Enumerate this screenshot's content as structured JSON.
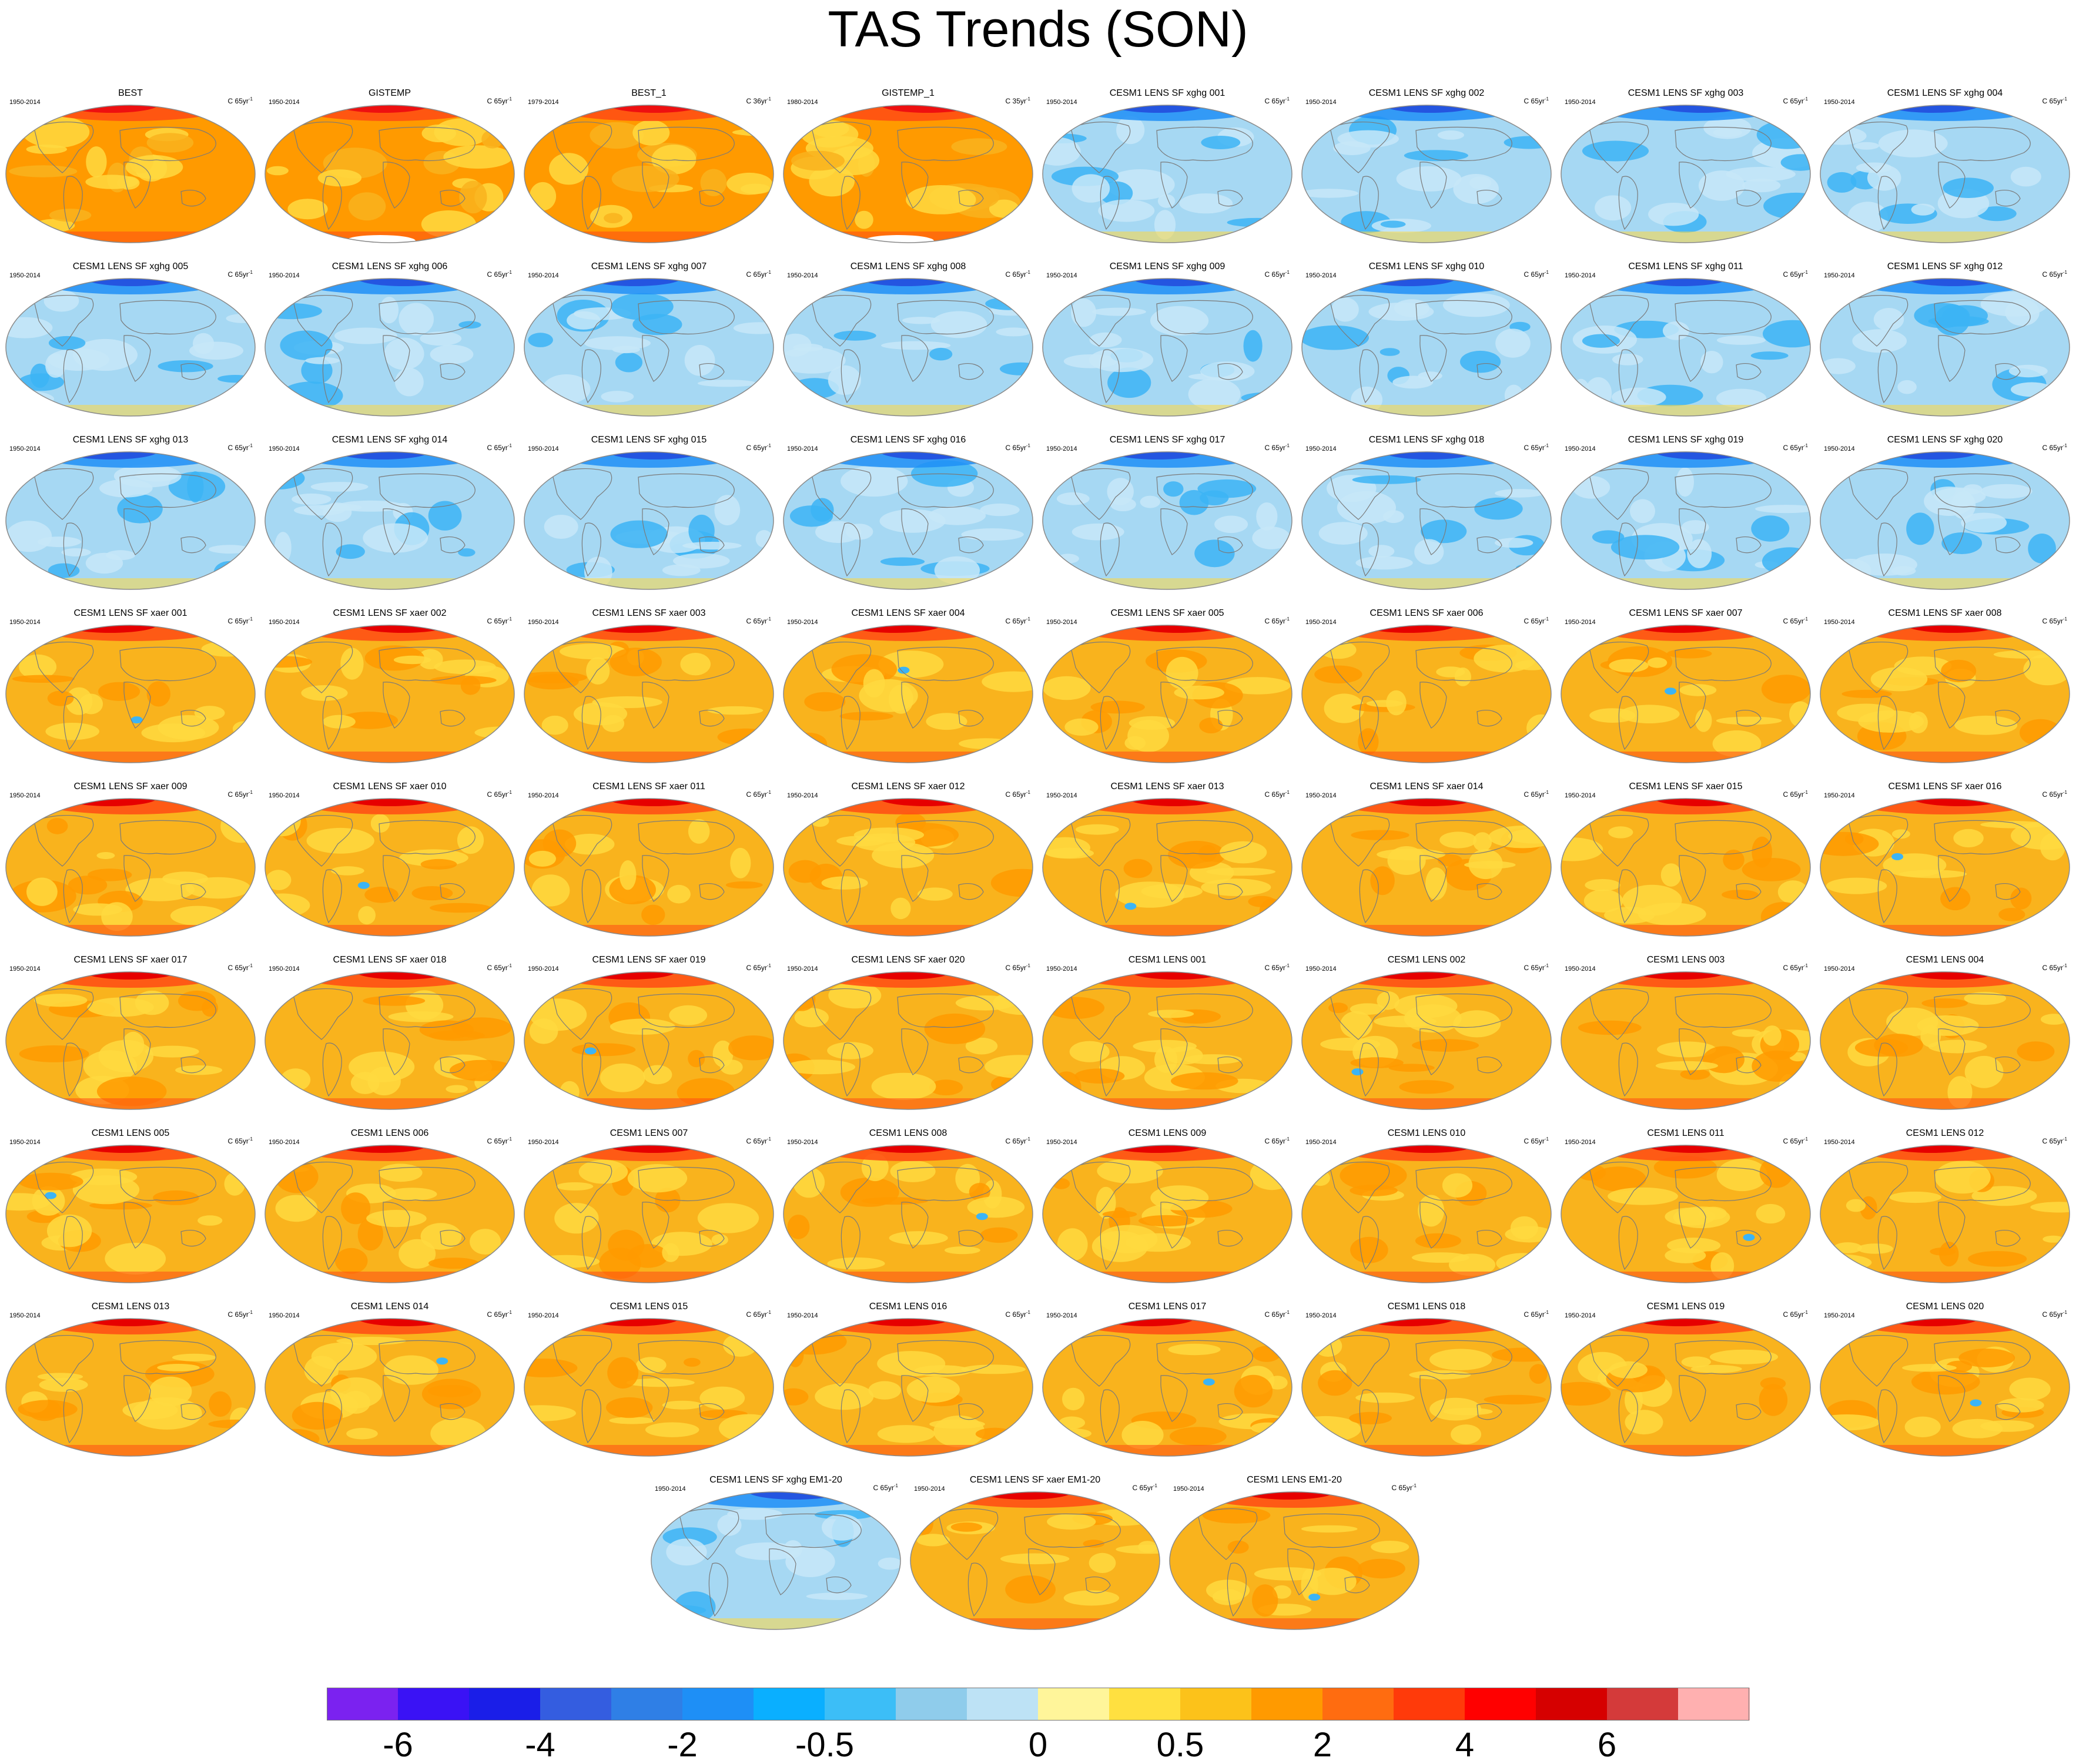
{
  "title": "TAS Trends (SON)",
  "colors": {
    "map_outline": "#8a8a8a",
    "land_outline": "#7a7a7a",
    "warm_base": "#f9b31d",
    "warm_light": "#ffd940",
    "warm_mid": "#ff9a00",
    "warm_hot": "#ff4a14",
    "warm_arctic": "#e60000",
    "cool_base": "#a6d8f3",
    "cool_mid": "#3cb4f5",
    "cool_deep": "#1e8ff6",
    "cool_arctic": "#2455e0"
  },
  "panels": [
    {
      "name": "BEST",
      "years": "1950-2014",
      "unit": "C 65yr",
      "style": "obs"
    },
    {
      "name": "GISTEMP",
      "years": "1950-2014",
      "unit": "C 65yr",
      "style": "obs"
    },
    {
      "name": "BEST_1",
      "years": "1979-2014",
      "unit": "C 36yr",
      "style": "obs"
    },
    {
      "name": "GISTEMP_1",
      "years": "1980-2014",
      "unit": "C 35yr",
      "style": "obs"
    },
    {
      "name": "CESM1 LENS SF xghg 001",
      "years": "1950-2014",
      "unit": "C 65yr",
      "style": "cool"
    },
    {
      "name": "CESM1 LENS SF xghg 002",
      "years": "1950-2014",
      "unit": "C 65yr",
      "style": "cool"
    },
    {
      "name": "CESM1 LENS SF xghg 003",
      "years": "1950-2014",
      "unit": "C 65yr",
      "style": "cool"
    },
    {
      "name": "CESM1 LENS SF xghg 004",
      "years": "1950-2014",
      "unit": "C 65yr",
      "style": "cool"
    },
    {
      "name": "CESM1 LENS SF xghg 005",
      "years": "1950-2014",
      "unit": "C 65yr",
      "style": "cool"
    },
    {
      "name": "CESM1 LENS SF xghg 006",
      "years": "1950-2014",
      "unit": "C 65yr",
      "style": "cool"
    },
    {
      "name": "CESM1 LENS SF xghg 007",
      "years": "1950-2014",
      "unit": "C 65yr",
      "style": "cool"
    },
    {
      "name": "CESM1 LENS SF xghg 008",
      "years": "1950-2014",
      "unit": "C 65yr",
      "style": "cool"
    },
    {
      "name": "CESM1 LENS SF xghg 009",
      "years": "1950-2014",
      "unit": "C 65yr",
      "style": "cool"
    },
    {
      "name": "CESM1 LENS SF xghg 010",
      "years": "1950-2014",
      "unit": "C 65yr",
      "style": "cool"
    },
    {
      "name": "CESM1 LENS SF xghg 011",
      "years": "1950-2014",
      "unit": "C 65yr",
      "style": "cool"
    },
    {
      "name": "CESM1 LENS SF xghg 012",
      "years": "1950-2014",
      "unit": "C 65yr",
      "style": "cool"
    },
    {
      "name": "CESM1 LENS SF xghg 013",
      "years": "1950-2014",
      "unit": "C 65yr",
      "style": "cool"
    },
    {
      "name": "CESM1 LENS SF xghg 014",
      "years": "1950-2014",
      "unit": "C 65yr",
      "style": "cool"
    },
    {
      "name": "CESM1 LENS SF xghg 015",
      "years": "1950-2014",
      "unit": "C 65yr",
      "style": "cool"
    },
    {
      "name": "CESM1 LENS SF xghg 016",
      "years": "1950-2014",
      "unit": "C 65yr",
      "style": "cool"
    },
    {
      "name": "CESM1 LENS SF xghg 017",
      "years": "1950-2014",
      "unit": "C 65yr",
      "style": "cool"
    },
    {
      "name": "CESM1 LENS SF xghg 018",
      "years": "1950-2014",
      "unit": "C 65yr",
      "style": "cool"
    },
    {
      "name": "CESM1 LENS SF xghg 019",
      "years": "1950-2014",
      "unit": "C 65yr",
      "style": "cool"
    },
    {
      "name": "CESM1 LENS SF xghg 020",
      "years": "1950-2014",
      "unit": "C 65yr",
      "style": "cool"
    },
    {
      "name": "CESM1 LENS SF xaer 001",
      "years": "1950-2014",
      "unit": "C 65yr",
      "style": "warm"
    },
    {
      "name": "CESM1 LENS SF xaer 002",
      "years": "1950-2014",
      "unit": "C 65yr",
      "style": "warm"
    },
    {
      "name": "CESM1 LENS SF xaer 003",
      "years": "1950-2014",
      "unit": "C 65yr",
      "style": "warm"
    },
    {
      "name": "CESM1 LENS SF xaer 004",
      "years": "1950-2014",
      "unit": "C 65yr",
      "style": "warm"
    },
    {
      "name": "CESM1 LENS SF xaer 005",
      "years": "1950-2014",
      "unit": "C 65yr",
      "style": "warm"
    },
    {
      "name": "CESM1 LENS SF xaer 006",
      "years": "1950-2014",
      "unit": "C 65yr",
      "style": "warm"
    },
    {
      "name": "CESM1 LENS SF xaer 007",
      "years": "1950-2014",
      "unit": "C 65yr",
      "style": "warm"
    },
    {
      "name": "CESM1 LENS SF xaer 008",
      "years": "1950-2014",
      "unit": "C 65yr",
      "style": "warm"
    },
    {
      "name": "CESM1 LENS SF xaer 009",
      "years": "1950-2014",
      "unit": "C 65yr",
      "style": "warm"
    },
    {
      "name": "CESM1 LENS SF xaer 010",
      "years": "1950-2014",
      "unit": "C 65yr",
      "style": "warm"
    },
    {
      "name": "CESM1 LENS SF xaer 011",
      "years": "1950-2014",
      "unit": "C 65yr",
      "style": "warm"
    },
    {
      "name": "CESM1 LENS SF xaer 012",
      "years": "1950-2014",
      "unit": "C 65yr",
      "style": "warm"
    },
    {
      "name": "CESM1 LENS SF xaer 013",
      "years": "1950-2014",
      "unit": "C 65yr",
      "style": "warm"
    },
    {
      "name": "CESM1 LENS SF xaer 014",
      "years": "1950-2014",
      "unit": "C 65yr",
      "style": "warm"
    },
    {
      "name": "CESM1 LENS SF xaer 015",
      "years": "1950-2014",
      "unit": "C 65yr",
      "style": "warm"
    },
    {
      "name": "CESM1 LENS SF xaer 016",
      "years": "1950-2014",
      "unit": "C 65yr",
      "style": "warm"
    },
    {
      "name": "CESM1 LENS SF xaer 017",
      "years": "1950-2014",
      "unit": "C 65yr",
      "style": "warm"
    },
    {
      "name": "CESM1 LENS SF xaer 018",
      "years": "1950-2014",
      "unit": "C 65yr",
      "style": "warm"
    },
    {
      "name": "CESM1 LENS SF xaer 019",
      "years": "1950-2014",
      "unit": "C 65yr",
      "style": "warm"
    },
    {
      "name": "CESM1 LENS SF xaer 020",
      "years": "1950-2014",
      "unit": "C 65yr",
      "style": "warm"
    },
    {
      "name": "CESM1 LENS 001",
      "years": "1950-2014",
      "unit": "C 65yr",
      "style": "warm"
    },
    {
      "name": "CESM1 LENS 002",
      "years": "1950-2014",
      "unit": "C 65yr",
      "style": "warm"
    },
    {
      "name": "CESM1 LENS 003",
      "years": "1950-2014",
      "unit": "C 65yr",
      "style": "warm"
    },
    {
      "name": "CESM1 LENS 004",
      "years": "1950-2014",
      "unit": "C 65yr",
      "style": "warm"
    },
    {
      "name": "CESM1 LENS 005",
      "years": "1950-2014",
      "unit": "C 65yr",
      "style": "warm"
    },
    {
      "name": "CESM1 LENS 006",
      "years": "1950-2014",
      "unit": "C 65yr",
      "style": "warm"
    },
    {
      "name": "CESM1 LENS 007",
      "years": "1950-2014",
      "unit": "C 65yr",
      "style": "warm"
    },
    {
      "name": "CESM1 LENS 008",
      "years": "1950-2014",
      "unit": "C 65yr",
      "style": "warm"
    },
    {
      "name": "CESM1 LENS 009",
      "years": "1950-2014",
      "unit": "C 65yr",
      "style": "warm"
    },
    {
      "name": "CESM1 LENS 010",
      "years": "1950-2014",
      "unit": "C 65yr",
      "style": "warm"
    },
    {
      "name": "CESM1 LENS 011",
      "years": "1950-2014",
      "unit": "C 65yr",
      "style": "warm"
    },
    {
      "name": "CESM1 LENS 012",
      "years": "1950-2014",
      "unit": "C 65yr",
      "style": "warm"
    },
    {
      "name": "CESM1 LENS 013",
      "years": "1950-2014",
      "unit": "C 65yr",
      "style": "warm"
    },
    {
      "name": "CESM1 LENS 014",
      "years": "1950-2014",
      "unit": "C 65yr",
      "style": "warm"
    },
    {
      "name": "CESM1 LENS 015",
      "years": "1950-2014",
      "unit": "C 65yr",
      "style": "warm"
    },
    {
      "name": "CESM1 LENS 016",
      "years": "1950-2014",
      "unit": "C 65yr",
      "style": "warm"
    },
    {
      "name": "CESM1 LENS 017",
      "years": "1950-2014",
      "unit": "C 65yr",
      "style": "warm"
    },
    {
      "name": "CESM1 LENS 018",
      "years": "1950-2014",
      "unit": "C 65yr",
      "style": "warm"
    },
    {
      "name": "CESM1 LENS 019",
      "years": "1950-2014",
      "unit": "C 65yr",
      "style": "warm"
    },
    {
      "name": "CESM1 LENS 020",
      "years": "1950-2014",
      "unit": "C 65yr",
      "style": "warm"
    },
    {
      "name": "CESM1 LENS SF xghg EM1-20",
      "years": "1950-2014",
      "unit": "C 65yr",
      "style": "cool"
    },
    {
      "name": "CESM1 LENS SF xaer EM1-20",
      "years": "1950-2014",
      "unit": "C 65yr",
      "style": "warm"
    },
    {
      "name": "CESM1 LENS EM1-20",
      "years": "1950-2014",
      "unit": "C 65yr",
      "style": "warm"
    }
  ],
  "colorbar": {
    "colors": [
      "#7b22f0",
      "#3a12f5",
      "#1a1ee8",
      "#345de0",
      "#2f7fe6",
      "#1e8ff6",
      "#0aafff",
      "#3cbef7",
      "#8fcceb",
      "#bde2f5",
      "#fff59a",
      "#ffe040",
      "#fcc21a",
      "#ff9a00",
      "#ff6c10",
      "#ff3a0a",
      "#ff0000",
      "#d60000",
      "#d43a3a",
      "#ffb0b0"
    ],
    "tick_labels": [
      {
        "label": "-6",
        "boundary": 1
      },
      {
        "label": "-4",
        "boundary": 3
      },
      {
        "label": "-2",
        "boundary": 5
      },
      {
        "label": "-0.5",
        "boundary": 7
      },
      {
        "label": "0",
        "boundary": 10
      },
      {
        "label": "0.5",
        "boundary": 12
      },
      {
        "label": "2",
        "boundary": 14
      },
      {
        "label": "4",
        "boundary": 16
      },
      {
        "label": "6",
        "boundary": 18
      }
    ]
  }
}
